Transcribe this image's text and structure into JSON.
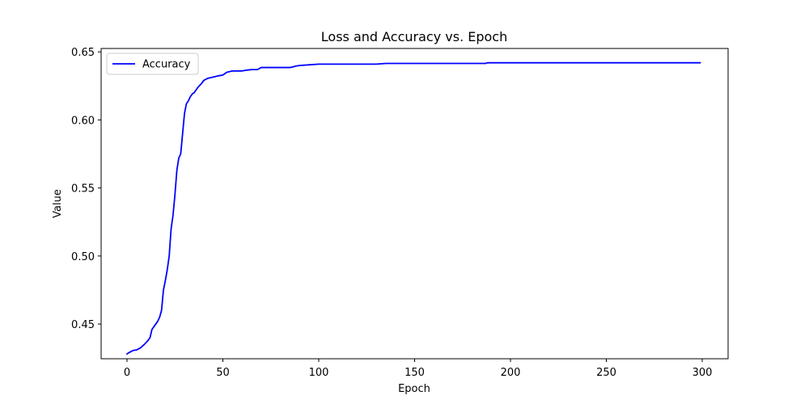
{
  "chart_data": {
    "type": "line",
    "title": "Loss and Accuracy vs. Epoch",
    "xlabel": "Epoch",
    "ylabel": "Value",
    "xlim": [
      -13.5,
      313.5
    ],
    "ylim": [
      0.4245,
      0.6525
    ],
    "xticks": [
      0,
      50,
      100,
      150,
      200,
      250,
      300
    ],
    "xtick_labels": [
      "0",
      "50",
      "100",
      "150",
      "200",
      "250",
      "300"
    ],
    "yticks": [
      0.45,
      0.5,
      0.55,
      0.6,
      0.65
    ],
    "ytick_labels": [
      "0.45",
      "0.50",
      "0.55",
      "0.60",
      "0.65"
    ],
    "grid": false,
    "legend": {
      "position": "top-left",
      "entries": [
        "Accuracy"
      ]
    },
    "series": [
      {
        "name": "Accuracy",
        "color": "#0000ff",
        "points": [
          [
            0,
            0.428
          ],
          [
            1,
            0.429
          ],
          [
            3,
            0.4305
          ],
          [
            5,
            0.431
          ],
          [
            7,
            0.4325
          ],
          [
            9,
            0.435
          ],
          [
            11,
            0.438
          ],
          [
            12,
            0.44
          ],
          [
            13,
            0.446
          ],
          [
            14,
            0.448
          ],
          [
            15,
            0.45
          ],
          [
            16,
            0.452
          ],
          [
            17,
            0.455
          ],
          [
            18,
            0.46
          ],
          [
            19,
            0.475
          ],
          [
            20,
            0.482
          ],
          [
            21,
            0.49
          ],
          [
            22,
            0.5
          ],
          [
            23,
            0.52
          ],
          [
            24,
            0.53
          ],
          [
            25,
            0.545
          ],
          [
            26,
            0.563
          ],
          [
            27,
            0.572
          ],
          [
            28,
            0.575
          ],
          [
            29,
            0.59
          ],
          [
            30,
            0.605
          ],
          [
            31,
            0.612
          ],
          [
            32,
            0.614
          ],
          [
            33,
            0.617
          ],
          [
            34,
            0.619
          ],
          [
            35,
            0.62
          ],
          [
            36,
            0.622
          ],
          [
            37,
            0.624
          ],
          [
            38,
            0.6255
          ],
          [
            39,
            0.627
          ],
          [
            40,
            0.629
          ],
          [
            42,
            0.6305
          ],
          [
            45,
            0.6315
          ],
          [
            48,
            0.6325
          ],
          [
            50,
            0.633
          ],
          [
            52,
            0.635
          ],
          [
            55,
            0.636
          ],
          [
            60,
            0.636
          ],
          [
            62,
            0.6365
          ],
          [
            65,
            0.637
          ],
          [
            68,
            0.637
          ],
          [
            70,
            0.6385
          ],
          [
            75,
            0.6385
          ],
          [
            80,
            0.6385
          ],
          [
            85,
            0.6385
          ],
          [
            88,
            0.6395
          ],
          [
            90,
            0.64
          ],
          [
            95,
            0.6405
          ],
          [
            100,
            0.641
          ],
          [
            110,
            0.641
          ],
          [
            120,
            0.641
          ],
          [
            130,
            0.641
          ],
          [
            135,
            0.6415
          ],
          [
            150,
            0.6415
          ],
          [
            170,
            0.6415
          ],
          [
            187,
            0.6415
          ],
          [
            188,
            0.642
          ],
          [
            200,
            0.642
          ],
          [
            250,
            0.642
          ],
          [
            299,
            0.642
          ]
        ]
      }
    ]
  }
}
